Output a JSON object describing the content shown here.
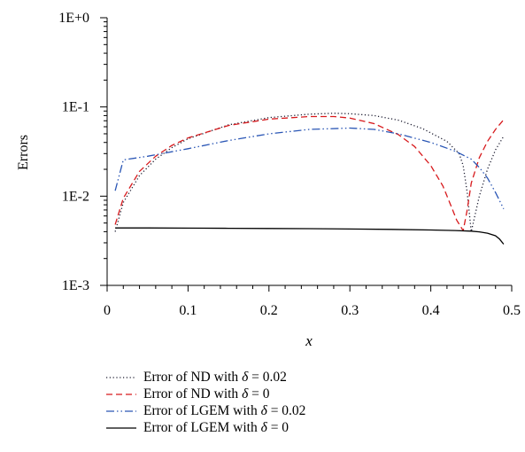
{
  "chart_data": {
    "type": "line",
    "title": "",
    "xlabel": "x",
    "ylabel": "Errors",
    "xlim": [
      0,
      0.5
    ],
    "ylim": [
      0.001,
      1
    ],
    "yscale": "log",
    "grid": false,
    "legend_position": "bottom",
    "x_ticks": [
      "0",
      "0.1",
      "0.2",
      "0.3",
      "0.4",
      "0.5"
    ],
    "y_ticks": [
      "1E-3",
      "1E-2",
      "1E-1",
      "1E+0"
    ],
    "series": [
      {
        "name": "Error of ND with δ = 0.02",
        "prefix": "Error of ND with ",
        "symbol": "δ",
        "suffix": " = 0.02",
        "color": "#1a1a2e",
        "style": "dotted",
        "x": [
          0.01,
          0.02,
          0.04,
          0.06,
          0.08,
          0.1,
          0.15,
          0.2,
          0.25,
          0.28,
          0.3,
          0.33,
          0.36,
          0.39,
          0.42,
          0.435,
          0.44,
          0.445,
          0.45,
          0.46,
          0.47,
          0.48,
          0.49
        ],
        "y": [
          0.004,
          0.0085,
          0.017,
          0.026,
          0.035,
          0.044,
          0.063,
          0.076,
          0.083,
          0.085,
          0.084,
          0.08,
          0.071,
          0.057,
          0.041,
          0.03,
          0.022,
          0.011,
          0.004,
          0.01,
          0.02,
          0.033,
          0.047
        ]
      },
      {
        "name": "Error of ND with δ = 0",
        "prefix": "Error of ND with ",
        "symbol": "δ",
        "suffix": " = 0",
        "color": "#d7191c",
        "style": "dashed",
        "x": [
          0.01,
          0.02,
          0.04,
          0.06,
          0.08,
          0.1,
          0.15,
          0.2,
          0.25,
          0.28,
          0.3,
          0.33,
          0.36,
          0.38,
          0.4,
          0.415,
          0.425,
          0.432,
          0.438,
          0.44,
          0.445,
          0.45,
          0.46,
          0.47,
          0.48,
          0.49
        ],
        "y": [
          0.0048,
          0.0095,
          0.019,
          0.028,
          0.037,
          0.045,
          0.062,
          0.073,
          0.078,
          0.078,
          0.075,
          0.065,
          0.049,
          0.036,
          0.022,
          0.013,
          0.0078,
          0.0054,
          0.0044,
          0.0041,
          0.007,
          0.014,
          0.027,
          0.041,
          0.056,
          0.072
        ]
      },
      {
        "name": "Error of LGEM with δ = 0.02",
        "prefix": "Error of LGEM with ",
        "symbol": "δ",
        "suffix": " = 0.02",
        "color": "#2a56b5",
        "style": "dashdotdot",
        "x": [
          0.01,
          0.02,
          0.05,
          0.1,
          0.15,
          0.2,
          0.25,
          0.3,
          0.33,
          0.36,
          0.4,
          0.43,
          0.45,
          0.46,
          0.47,
          0.48,
          0.49
        ],
        "y": [
          0.0115,
          0.0255,
          0.028,
          0.034,
          0.042,
          0.05,
          0.056,
          0.058,
          0.056,
          0.05,
          0.04,
          0.032,
          0.026,
          0.021,
          0.016,
          0.011,
          0.0072
        ]
      },
      {
        "name": "Error of LGEM with δ = 0",
        "prefix": "Error of LGEM with ",
        "symbol": "δ",
        "suffix": " = 0",
        "color": "#000000",
        "style": "solid",
        "x": [
          0.01,
          0.05,
          0.1,
          0.15,
          0.2,
          0.25,
          0.3,
          0.35,
          0.4,
          0.43,
          0.45,
          0.46,
          0.47,
          0.48,
          0.485,
          0.49
        ],
        "y": [
          0.0044,
          0.0044,
          0.00438,
          0.00436,
          0.00434,
          0.00432,
          0.00428,
          0.00424,
          0.00418,
          0.00412,
          0.00405,
          0.00398,
          0.00385,
          0.0036,
          0.0033,
          0.0029
        ]
      }
    ]
  }
}
